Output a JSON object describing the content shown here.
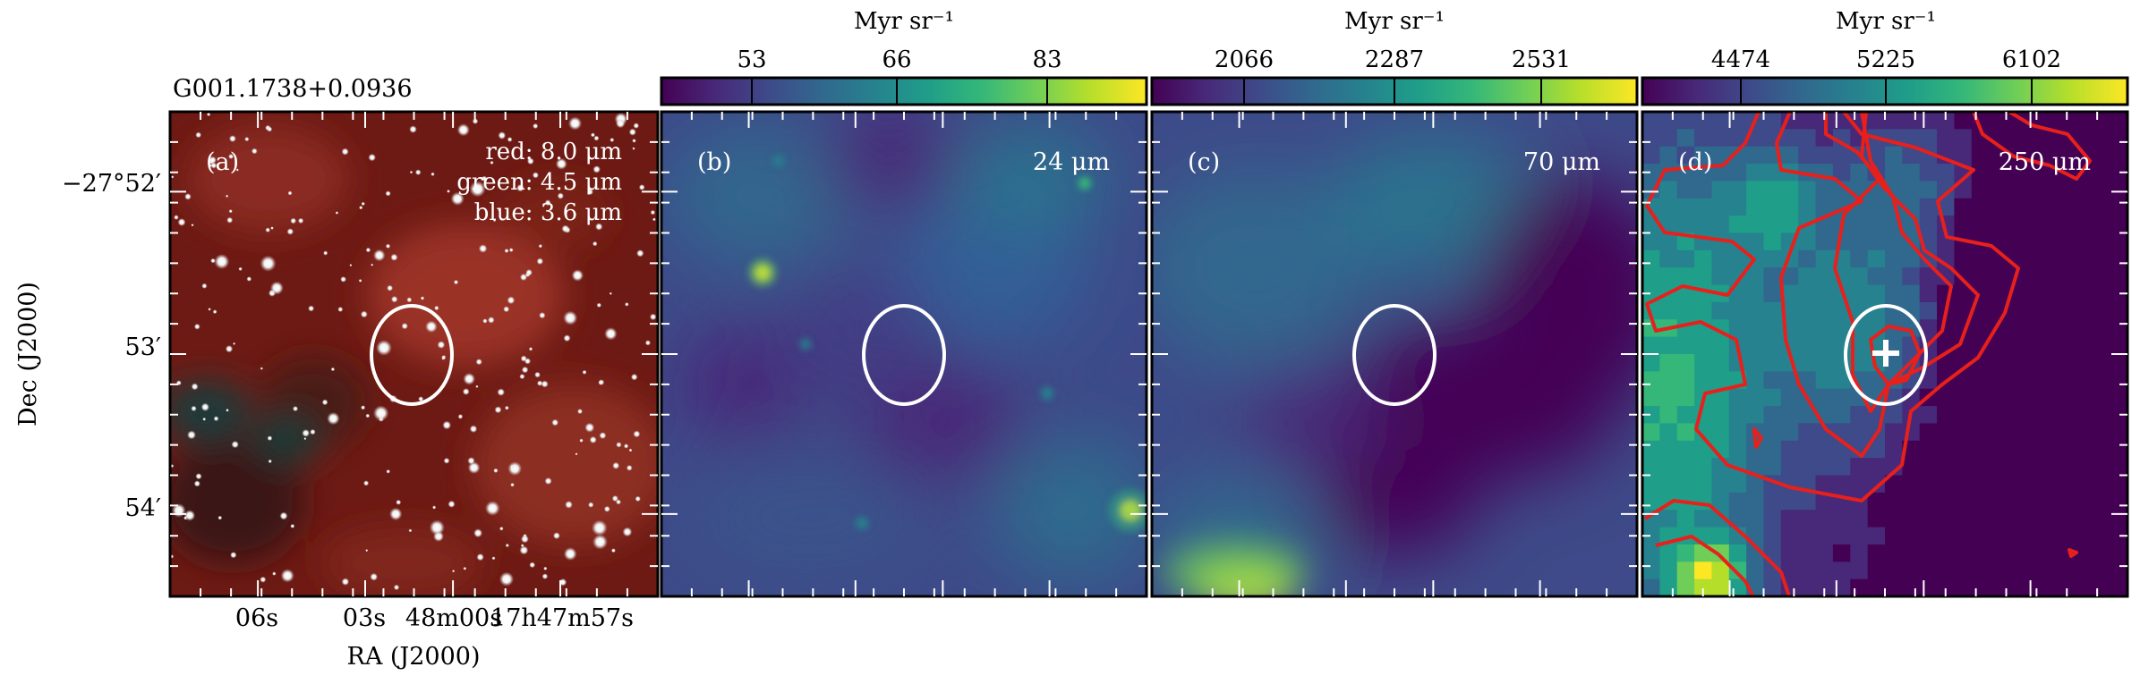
{
  "source_id": "G001.1738+0.0936",
  "axes": {
    "xlabel": "RA (J2000)",
    "ylabel": "Dec (J2000)",
    "ra_ticks": [
      "06s",
      "03s",
      "48m00s",
      "17h47m57s"
    ],
    "dec_ticks": [
      "−27°52′",
      "53′",
      "54′"
    ]
  },
  "panels": [
    {
      "letter": "(a)",
      "legend": [
        "red: 8.0 μm",
        "green: 4.5 μm",
        "blue: 3.6 μm"
      ],
      "band": "",
      "colorbar": null
    },
    {
      "letter": "(b)",
      "band": "24 μm",
      "colorbar": {
        "unit": "Myr sr⁻¹",
        "ticks": [
          "53",
          "66",
          "83"
        ]
      }
    },
    {
      "letter": "(c)",
      "band": "70 μm",
      "colorbar": {
        "unit": "Myr sr⁻¹",
        "ticks": [
          "2066",
          "2287",
          "2531"
        ]
      }
    },
    {
      "letter": "(d)",
      "band": "250 μm",
      "colorbar": {
        "unit": "Myr sr⁻¹",
        "ticks": [
          "4474",
          "5225",
          "6102"
        ]
      }
    }
  ],
  "colors": {
    "frame": "#000000",
    "ellipse": "#ffffff",
    "contour": "#e8201c",
    "marker": "#ffffff",
    "viridis": [
      "#440154",
      "#482878",
      "#3e4a89",
      "#31688e",
      "#26828e",
      "#1f9e89",
      "#35b779",
      "#6ece58",
      "#b5de2b",
      "#fde725"
    ]
  }
}
